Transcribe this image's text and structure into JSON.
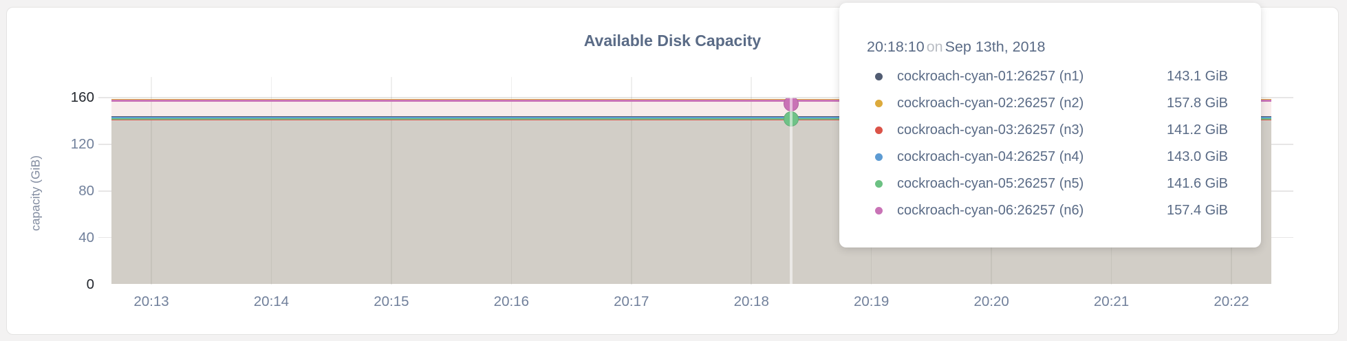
{
  "chart": {
    "title": "Available Disk Capacity",
    "y_label": "capacity (GiB)",
    "y_ticks": [
      "0",
      "40",
      "80",
      "120",
      "160"
    ],
    "x_ticks": [
      "20:13",
      "20:14",
      "20:15",
      "20:16",
      "20:17",
      "20:18",
      "20:19",
      "20:20",
      "20:21",
      "20:22"
    ]
  },
  "tooltip": {
    "time": "20:18:10",
    "connector": "on",
    "date": "Sep 13th, 2018",
    "rows": [
      {
        "name": "cockroach-cyan-01:26257 (n1)",
        "value": "143.1 GiB",
        "color": "#515c72"
      },
      {
        "name": "cockroach-cyan-02:26257 (n2)",
        "value": "157.8 GiB",
        "color": "#dcaa3c"
      },
      {
        "name": "cockroach-cyan-03:26257 (n3)",
        "value": "141.2 GiB",
        "color": "#db5348"
      },
      {
        "name": "cockroach-cyan-04:26257 (n4)",
        "value": "143.0 GiB",
        "color": "#5d9bd3"
      },
      {
        "name": "cockroach-cyan-05:26257 (n5)",
        "value": "141.6 GiB",
        "color": "#6cc183"
      },
      {
        "name": "cockroach-cyan-06:26257 (n6)",
        "value": "157.4 GiB",
        "color": "#c973b6"
      }
    ]
  },
  "chart_data": {
    "type": "area",
    "title": "Available Disk Capacity",
    "ylabel": "capacity (GiB)",
    "ylim": [
      0,
      160
    ],
    "y_ticks": [
      0,
      40,
      80,
      120,
      160
    ],
    "x_ticks": [
      "20:13",
      "20:14",
      "20:15",
      "20:16",
      "20:17",
      "20:18",
      "20:19",
      "20:20",
      "20:21",
      "20:22"
    ],
    "grid": true,
    "legend_position": "tooltip-overlay",
    "hover_point": {
      "time": "20:18:10",
      "date": "Sep 13th, 2018",
      "marker_series": [
        "n6",
        "n5"
      ]
    },
    "series": [
      {
        "name": "cockroach-cyan-01:26257 (n1)",
        "node": "n1",
        "color": "#515c72",
        "value_gib": 143.1,
        "shape": "constant-line"
      },
      {
        "name": "cockroach-cyan-02:26257 (n2)",
        "node": "n2",
        "color": "#dcaa3c",
        "value_gib": 157.8,
        "shape": "constant-line"
      },
      {
        "name": "cockroach-cyan-03:26257 (n3)",
        "node": "n3",
        "color": "#db5348",
        "value_gib": 141.2,
        "shape": "constant-line"
      },
      {
        "name": "cockroach-cyan-04:26257 (n4)",
        "node": "n4",
        "color": "#5d9bd3",
        "value_gib": 143.0,
        "shape": "constant-line"
      },
      {
        "name": "cockroach-cyan-05:26257 (n5)",
        "node": "n5",
        "color": "#6cc183",
        "value_gib": 141.6,
        "shape": "constant-line"
      },
      {
        "name": "cockroach-cyan-06:26257 (n6)",
        "node": "n6",
        "color": "#c973b6",
        "value_gib": 157.4,
        "shape": "constant-line"
      }
    ]
  },
  "colors": {
    "page_bg": "#f3f2f2",
    "card_bg": "#ffffff",
    "card_border": "#e4e3e2",
    "title_text": "#5a6b86",
    "axis_tick_text": "#71809b",
    "axis_extreme_tick_text": "#23272e",
    "gridline": "#e7e6e6",
    "upper_band_fill": "#f8eceb",
    "lower_band_fill": "#d2cec7",
    "tooltip_muted_text": "#b9bdc4",
    "hover_marker_top": "#c973b6",
    "hover_marker_bottom": "#6fc287"
  }
}
